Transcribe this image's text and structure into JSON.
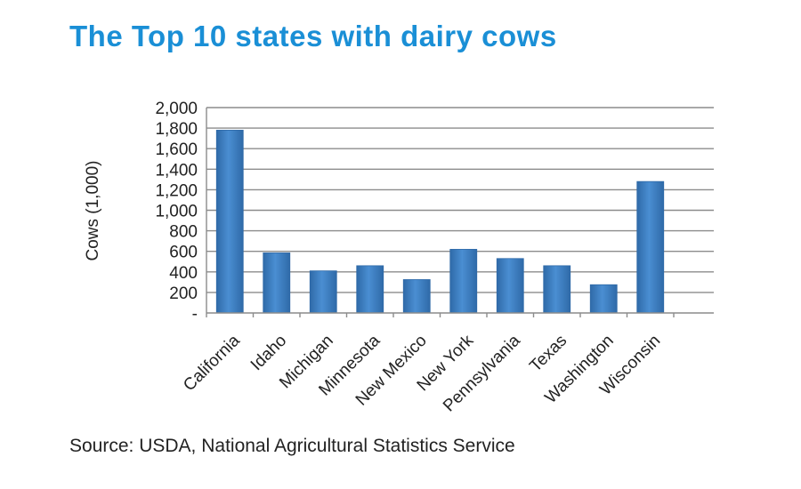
{
  "header": {
    "title": "The Top 10 states with dairy cows"
  },
  "footer": {
    "source": "Source: USDA, National Agricultural Statistics Service"
  },
  "colors": {
    "title": "#1a8fd6",
    "bar": "#3d7fc4",
    "bar_edge": "#2f6aa8",
    "grid": "#8c8c8c",
    "text": "#222222"
  },
  "chart_data": {
    "type": "bar",
    "title": "",
    "ylabel": "Cows (1,000)",
    "xlabel": "",
    "categories": [
      "California",
      "Idaho",
      "Michigan",
      "Minnesota",
      "New Mexico",
      "New York",
      "Pennsylvania",
      "Texas",
      "Washington",
      "Wisconsin"
    ],
    "values": [
      1780,
      585,
      410,
      460,
      325,
      620,
      530,
      460,
      275,
      1280
    ],
    "ylim": [
      0,
      2000
    ],
    "yticks": [
      0,
      200,
      400,
      600,
      800,
      1000,
      1200,
      1400,
      1600,
      1800,
      2000
    ],
    "ytick_labels": [
      "-",
      "200",
      "400",
      "600",
      "800",
      "1,000",
      "1,200",
      "1,400",
      "1,600",
      "1,800",
      "2,000"
    ],
    "grid": true,
    "legend": "none"
  }
}
